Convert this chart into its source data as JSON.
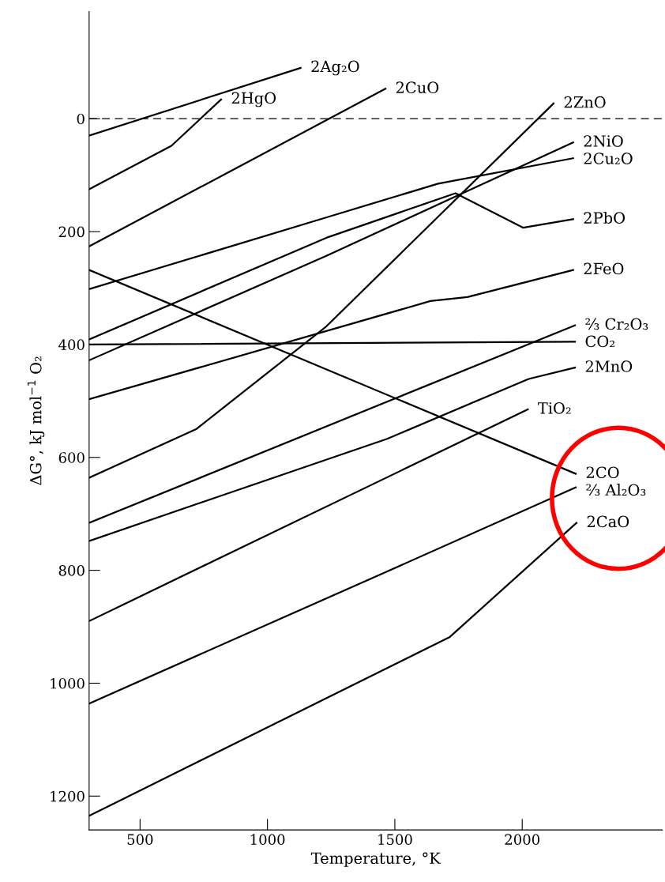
{
  "chart_data": {
    "type": "line",
    "xlabel": "Temperature, °K",
    "ylabel": "ΔG°, kJ mol$^{−1}$ O₂",
    "xlim": [
      300,
      2550
    ],
    "xticks": [
      500,
      1000,
      1500,
      2000
    ],
    "ylim": [
      1260,
      -190
    ],
    "yticks": [
      0,
      200,
      400,
      600,
      800,
      1000,
      1200
    ],
    "grid": false,
    "legend": false,
    "marker": "none",
    "line_style": "solid",
    "ref_lines": [
      {
        "axis": "y",
        "value": 0,
        "line_style": "dashed",
        "color": "#000000"
      }
    ],
    "series": [
      {
        "name": "2Ag₂O",
        "color": "#000000",
        "x": [
          300,
          1130
        ],
        "values": [
          30,
          -90
        ]
      },
      {
        "name": "2HgO",
        "color": "#000000",
        "x": [
          300,
          623,
          818
        ],
        "values": [
          125,
          48,
          -34
        ]
      },
      {
        "name": "2CuO",
        "color": "#000000",
        "x": [
          300,
          1463
        ],
        "values": [
          226,
          -53
        ]
      },
      {
        "name": "2ZnO",
        "color": "#000000",
        "x": [
          300,
          720,
          1231,
          2123
        ],
        "values": [
          636,
          550,
          368,
          -27
        ]
      },
      {
        "name": "2NiO",
        "color": "#000000",
        "x": [
          300,
          1231,
          2200
        ],
        "values": [
          428,
          243,
          42
        ]
      },
      {
        "name": "2Cu₂O",
        "color": "#000000",
        "x": [
          300,
          1230,
          1670,
          2200
        ],
        "values": [
          302,
          175,
          115,
          70
        ]
      },
      {
        "name": "2PbO",
        "color": "#000000",
        "x": [
          300,
          1231,
          1738,
          2003,
          2200
        ],
        "values": [
          391,
          211,
          132,
          193,
          178
        ]
      },
      {
        "name": "2FeO",
        "color": "#000000",
        "x": [
          300,
          1640,
          1785,
          2200
        ],
        "values": [
          497,
          323,
          316,
          268
        ]
      },
      {
        "name": "⅔ Cr₂O₃",
        "color": "#000000",
        "x": [
          300,
          2207
        ],
        "values": [
          716,
          366
        ]
      },
      {
        "name": "CO₂",
        "color": "#000000",
        "x": [
          300,
          2207
        ],
        "values": [
          400,
          395
        ]
      },
      {
        "name": "2MnO",
        "color": "#000000",
        "x": [
          300,
          1470,
          2025,
          2207
        ],
        "values": [
          748,
          567,
          461,
          441
        ]
      },
      {
        "name": "TiO₂",
        "color": "#000000",
        "x": [
          300,
          2022
        ],
        "values": [
          890,
          515
        ]
      },
      {
        "name": "2CO",
        "color": "#000000",
        "x": [
          300,
          2210
        ],
        "values": [
          268,
          629
        ]
      },
      {
        "name": "⅔ Al₂O₃",
        "color": "#000000",
        "x": [
          300,
          1460,
          2210
        ],
        "values": [
          1036,
          804,
          653
        ]
      },
      {
        "name": "2CaO",
        "color": "#000000",
        "x": [
          300,
          1716,
          2213
        ],
        "values": [
          1235,
          918,
          716
        ]
      }
    ]
  }
}
